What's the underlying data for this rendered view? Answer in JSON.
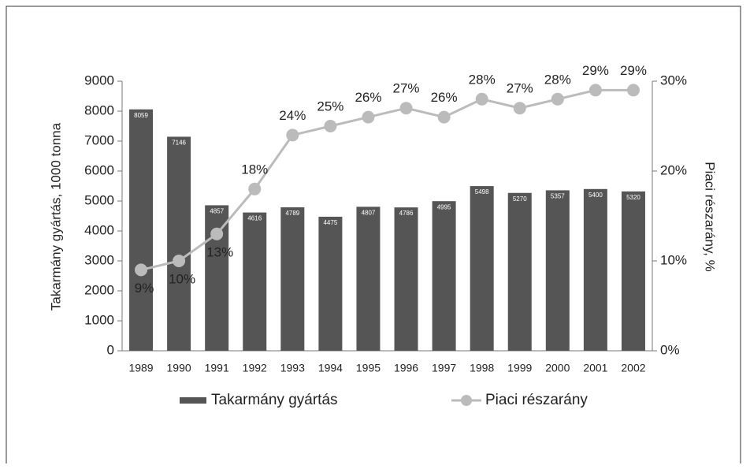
{
  "chart_data": {
    "type": "bar",
    "categories": [
      "1989",
      "1990",
      "1991",
      "1992",
      "1993",
      "1994",
      "1995",
      "1996",
      "1997",
      "1998",
      "1999",
      "2000",
      "2001",
      "2002"
    ],
    "series": [
      {
        "name": "Takarmány gyártás",
        "color": "#555555",
        "values": [
          8059,
          7146,
          4857,
          4616,
          4789,
          4475,
          4807,
          4786,
          4995,
          5498,
          5270,
          5357,
          5400,
          5320
        ]
      },
      {
        "name": "Piaci részarány",
        "color": "#bbbbbb",
        "axis": "y2",
        "type": "line",
        "values": [
          9,
          10,
          13,
          18,
          24,
          25,
          26,
          27,
          26,
          28,
          27,
          28,
          29,
          29
        ],
        "value_labels": [
          "9%",
          "10%",
          "13%",
          "18%",
          "24%",
          "25%",
          "26%",
          "27%",
          "26%",
          "28%",
          "27%",
          "28%",
          "29%",
          "29%"
        ]
      }
    ],
    "ylabel": "Takarmány gyártás, 1000 tonna",
    "y2label": "Piaci részarány, %",
    "ylim": [
      0,
      9000
    ],
    "yticks": [
      0,
      1000,
      2000,
      3000,
      4000,
      5000,
      6000,
      7000,
      8000,
      9000
    ],
    "y2lim": [
      0,
      30
    ],
    "y2ticks": [
      {
        "value": 0,
        "label": "0%"
      },
      {
        "value": 10,
        "label": "10%"
      },
      {
        "value": 20,
        "label": "20%"
      },
      {
        "value": 30,
        "label": "30%"
      }
    ],
    "legend": "bottom"
  }
}
